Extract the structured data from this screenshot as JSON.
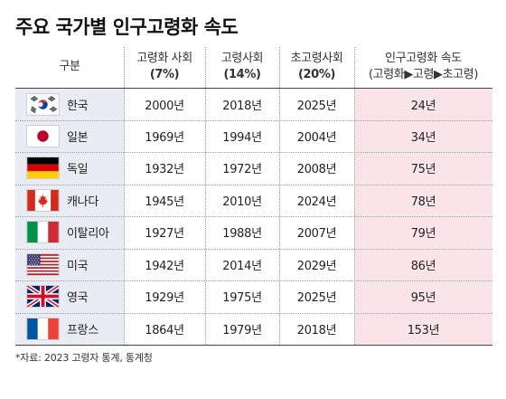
{
  "title": "주요 국가별 인구고령화 속도",
  "headers": {
    "country": "구분",
    "aging": {
      "line1": "고령화 사회",
      "line2": "(7%)"
    },
    "aged": {
      "line1": "고령사회",
      "line2": "(14%)"
    },
    "superaged": {
      "line1": "초고령사회",
      "line2": "(20%)"
    },
    "speed": {
      "line1": "인구고령화 속도",
      "line2": "(고령화▶고령▶초고령)"
    }
  },
  "rows": [
    {
      "country": "한국",
      "flag": "korea-flag-icon",
      "aging": "2000년",
      "aged": "2018년",
      "superaged": "2025년",
      "speed": "24년"
    },
    {
      "country": "일본",
      "flag": "japan-flag-icon",
      "aging": "1969년",
      "aged": "1994년",
      "superaged": "2004년",
      "speed": "34년"
    },
    {
      "country": "독일",
      "flag": "germany-flag-icon",
      "aging": "1932년",
      "aged": "1972년",
      "superaged": "2008년",
      "speed": "75년"
    },
    {
      "country": "캐나다",
      "flag": "canada-flag-icon",
      "aging": "1945년",
      "aged": "2010년",
      "superaged": "2024년",
      "speed": "78년"
    },
    {
      "country": "이탈리아",
      "flag": "italy-flag-icon",
      "aging": "1927년",
      "aged": "1988년",
      "superaged": "2007년",
      "speed": "79년"
    },
    {
      "country": "미국",
      "flag": "usa-flag-icon",
      "aging": "1942년",
      "aged": "2014년",
      "superaged": "2029년",
      "speed": "86년"
    },
    {
      "country": "영국",
      "flag": "uk-flag-icon",
      "aging": "1929년",
      "aged": "1975년",
      "superaged": "2025년",
      "speed": "95년"
    },
    {
      "country": "프랑스",
      "flag": "france-flag-icon",
      "aging": "1864년",
      "aged": "1979년",
      "superaged": "2018년",
      "speed": "153년"
    }
  ],
  "source": "*자료: 2023 고령자 통계, 통계청",
  "colors": {
    "country_column_bg": "#e9edf3",
    "speed_column_bg": "#f9e4e8",
    "rule": "#444444"
  }
}
